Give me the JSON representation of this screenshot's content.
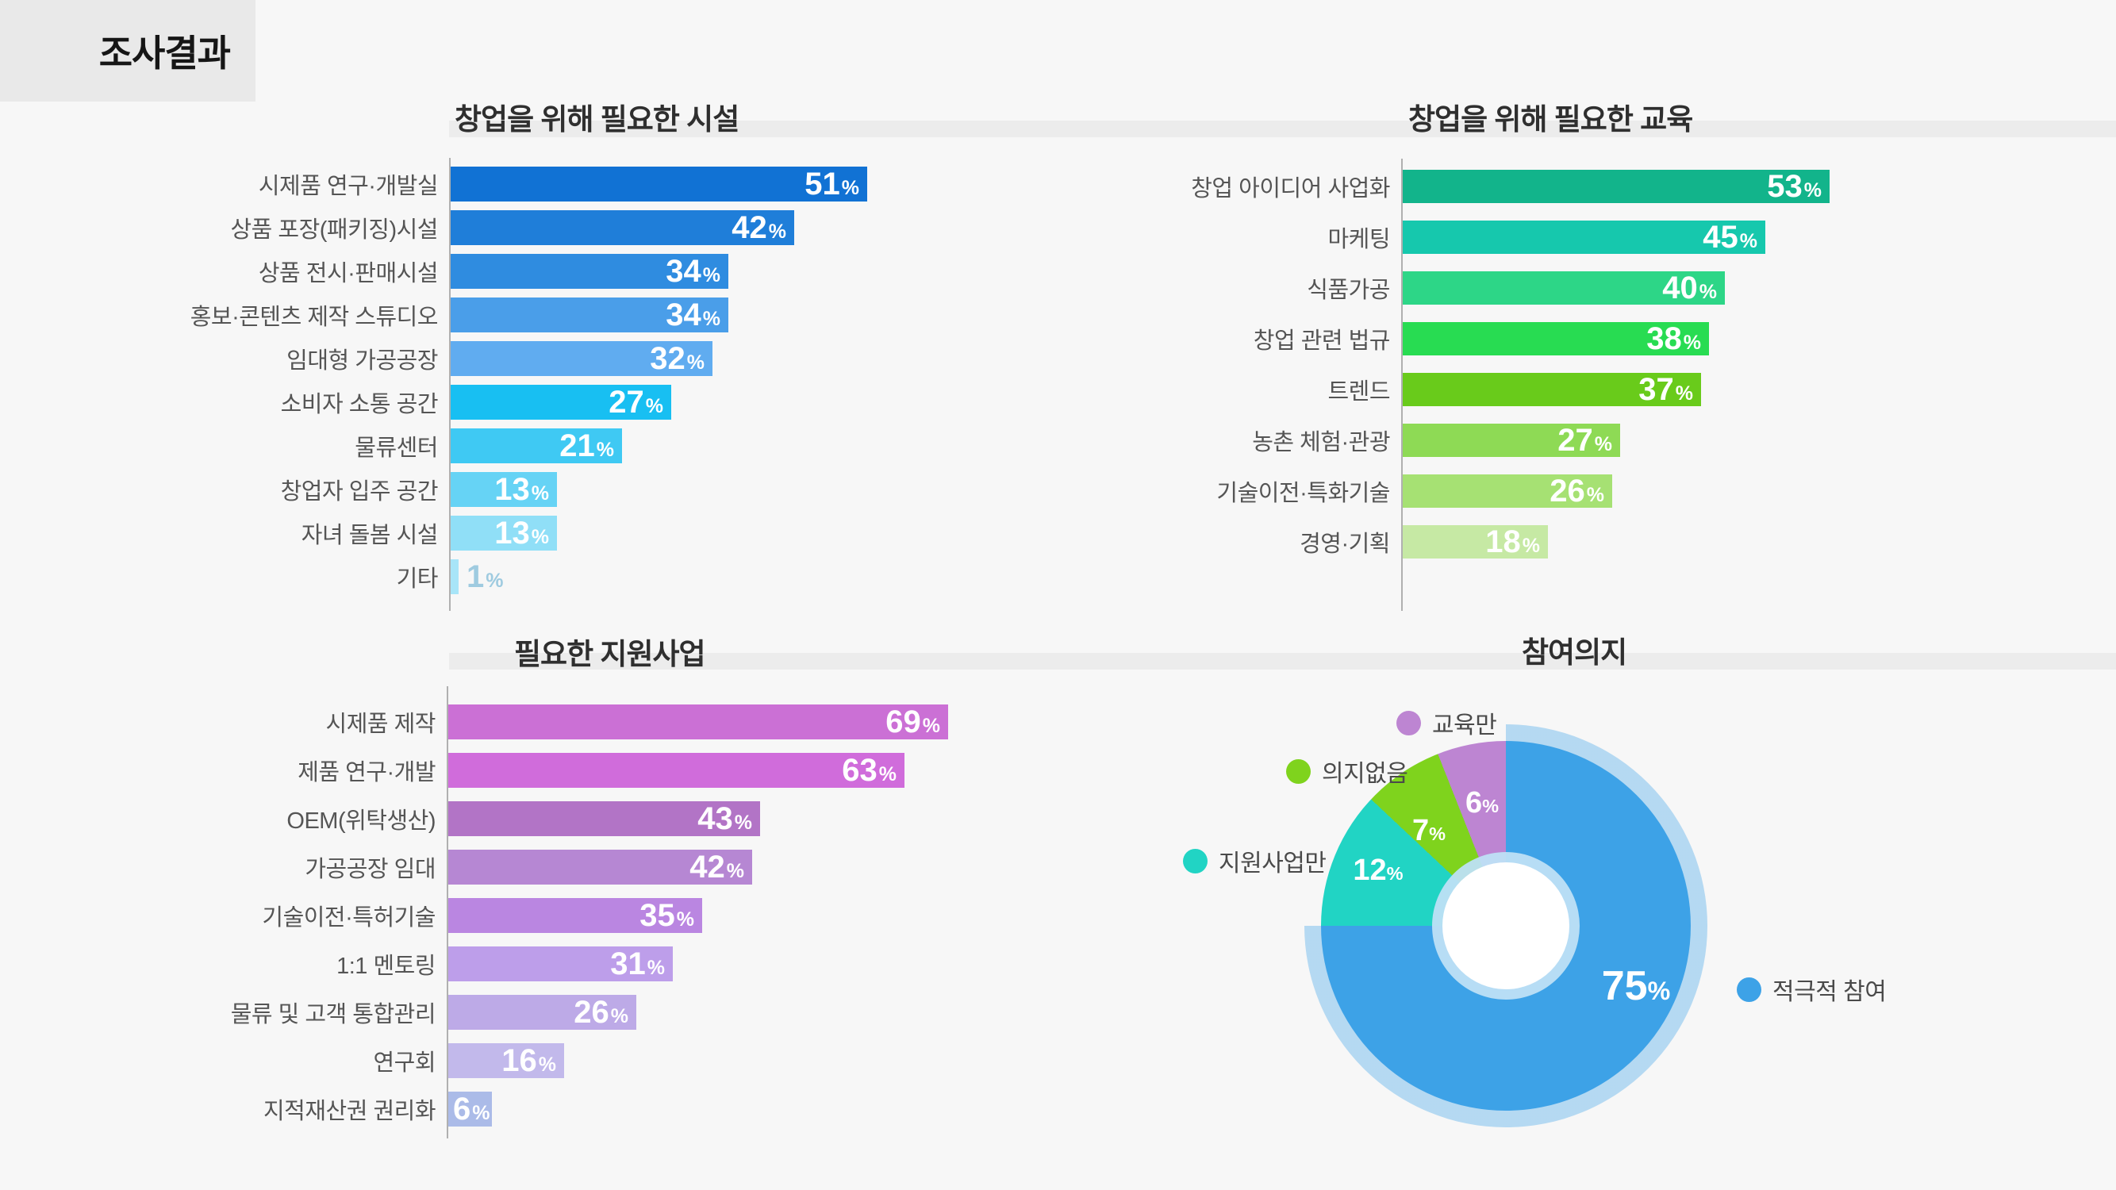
{
  "header": {
    "title": "조사결과"
  },
  "chart_data": [
    {
      "type": "bar",
      "id": "facilities",
      "orientation": "horizontal",
      "title": "창업을 위해 필요한 시설",
      "unit": "%",
      "categories": [
        "시제품 연구·개발실",
        "상품 포장(패키징)시설",
        "상품 전시·판매시설",
        "홍보·콘텐츠 제작 스튜디오",
        "임대형 가공공장",
        "소비자 소통 공간",
        "물류센터",
        "창업자 입주 공간",
        "자녀 돌봄 시설",
        "기타"
      ],
      "values": [
        51,
        42,
        34,
        34,
        32,
        27,
        21,
        13,
        13,
        1
      ],
      "colors": [
        "#1172d4",
        "#1f7ed9",
        "#2f8ce0",
        "#4a9ee9",
        "#60acf0",
        "#18bff2",
        "#3fc9f3",
        "#66d3f5",
        "#90dff7",
        "#a8e5f8"
      ],
      "xlim": [
        0,
        55
      ],
      "grid": false,
      "value_label_position": "inside-end"
    },
    {
      "type": "bar",
      "id": "education",
      "orientation": "horizontal",
      "title": "창업을 위해 필요한 교육",
      "unit": "%",
      "categories": [
        "창업 아이디어 사업화",
        "마케팅",
        "식품가공",
        "창업 관련 법규",
        "트렌드",
        "농촌 체험·관광",
        "기술이전·특화기술",
        "경영·기획"
      ],
      "values": [
        53,
        45,
        40,
        38,
        37,
        27,
        26,
        18
      ],
      "colors": [
        "#12b48b",
        "#16c8ad",
        "#2dd687",
        "#28dc52",
        "#69cb1b",
        "#8eda55",
        "#a6e173",
        "#c6e9a4"
      ],
      "xlim": [
        0,
        55
      ],
      "grid": false,
      "value_label_position": "inside-end"
    },
    {
      "type": "bar",
      "id": "support",
      "orientation": "horizontal",
      "title": "필요한 지원사업",
      "unit": "%",
      "categories": [
        "시제품 제작",
        "제품 연구·개발",
        "OEM(위탁생산)",
        "가공공장 임대",
        "기술이전·특허기술",
        "1:1 멘토링",
        "물류 및 고객 통합관리",
        "연구회",
        "지적재산권 권리화"
      ],
      "values": [
        69,
        63,
        43,
        42,
        35,
        31,
        26,
        16,
        6
      ],
      "colors": [
        "#cb70d5",
        "#d06cdb",
        "#b274c6",
        "#b687d3",
        "#ba86e1",
        "#bd9eea",
        "#bdaae7",
        "#c2b9eb",
        "#abbbe8"
      ],
      "xlim": [
        0,
        75
      ],
      "grid": false,
      "value_label_position": "inside-end"
    },
    {
      "type": "pie",
      "id": "participation",
      "title": "참여의지",
      "donut": true,
      "start_angle_deg": 0,
      "direction": "clockwise",
      "labels": [
        "적극적 참여",
        "지원사업만",
        "의지없음",
        "교육만"
      ],
      "values": [
        75,
        12,
        7,
        6
      ],
      "unit": "%",
      "colors": [
        "#3da2e7",
        "#21d4c4",
        "#7fd31d",
        "#bd85d2"
      ],
      "highlight": {
        "slice": "적극적 참여",
        "halo_color": "rgba(100,180,235,0.45)"
      }
    }
  ]
}
